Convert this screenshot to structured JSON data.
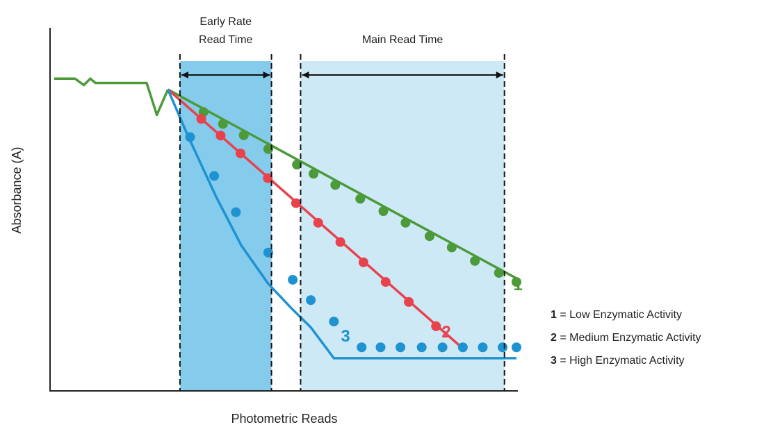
{
  "chart_data": {
    "type": "line",
    "xlabel": "Photometric Reads",
    "ylabel": "Absorbance (A)",
    "xlim": [
      0,
      100
    ],
    "ylim": [
      0,
      100
    ],
    "regions": [
      {
        "label_lines": [
          "Early Rate",
          "Read Time"
        ],
        "x_start": 27.2,
        "x_end": 47.0,
        "fill": "#84cbec"
      },
      {
        "label_lines": [
          "Main Read Time"
        ],
        "x_start": 53.3,
        "x_end": 97.4,
        "fill": "#cde9f6"
      }
    ],
    "baseline": {
      "color": "#4c9a3a",
      "x": [
        0,
        4.5,
        6.4,
        7.8,
        8.9,
        10.4,
        20.0,
        22.2,
        24.6
      ],
      "y": [
        86.0,
        86.0,
        84.2,
        86.0,
        84.8,
        84.8,
        84.8,
        76.0,
        83.0
      ]
    },
    "series": [
      {
        "name": "1",
        "color": "#4c9a3a",
        "line": {
          "x": [
            24.6,
            100.0
          ],
          "y": [
            83.0,
            31.0
          ]
        },
        "points": {
          "x": [
            32.3,
            36.5,
            41.0,
            46.3,
            52.5,
            56.1,
            60.8,
            66.2,
            71.2,
            76.0,
            81.2,
            86.0,
            91.0,
            96.2,
            100.0
          ],
          "y": [
            76.8,
            73.5,
            70.4,
            66.6,
            62.3,
            59.8,
            56.7,
            52.9,
            49.5,
            46.3,
            42.6,
            39.5,
            35.8,
            32.5,
            30.0
          ]
        }
      },
      {
        "name": "2",
        "color": "#e8424d",
        "line": {
          "x": [
            24.6,
            89.0
          ],
          "y": [
            83.0,
            11.0
          ]
        },
        "points": {
          "x": [
            31.8,
            36.0,
            40.3,
            46.2,
            52.3,
            57.1,
            61.9,
            66.9,
            71.7,
            76.7,
            82.6
          ],
          "y": [
            74.9,
            70.3,
            65.4,
            58.6,
            51.7,
            46.3,
            41.0,
            35.4,
            30.0,
            24.5,
            17.8
          ]
        }
      },
      {
        "name": "3",
        "color": "#1f92d1",
        "line": {
          "x": [
            24.6,
            29.0,
            35.0,
            40.5,
            46.3,
            51.5,
            55.5,
            60.5,
            63.4,
            100.0
          ],
          "y": [
            83.0,
            70.0,
            53.5,
            40.0,
            29.5,
            22.5,
            17.5,
            9.0,
            9.0,
            9.0
          ]
        },
        "points": {
          "x": [
            29.4,
            34.6,
            39.3,
            46.3,
            51.6,
            55.5,
            60.5,
            66.5,
            70.6,
            74.9,
            79.5,
            84.0,
            88.4,
            92.7,
            97.0,
            100.0
          ],
          "y": [
            69.9,
            59.2,
            49.2,
            38.1,
            30.6,
            25.0,
            19.1,
            12.0,
            12.0,
            12.0,
            12.0,
            12.0,
            12.0,
            12.0,
            12.0,
            12.0
          ]
        }
      }
    ],
    "legend": [
      {
        "num": "1",
        "text": " = Low Enzymatic Activity"
      },
      {
        "num": "2",
        "text": " = Medium Enzymatic Activity"
      },
      {
        "num": "3",
        "text": " = High Enzymatic Activity"
      }
    ],
    "legend_position": "right"
  }
}
